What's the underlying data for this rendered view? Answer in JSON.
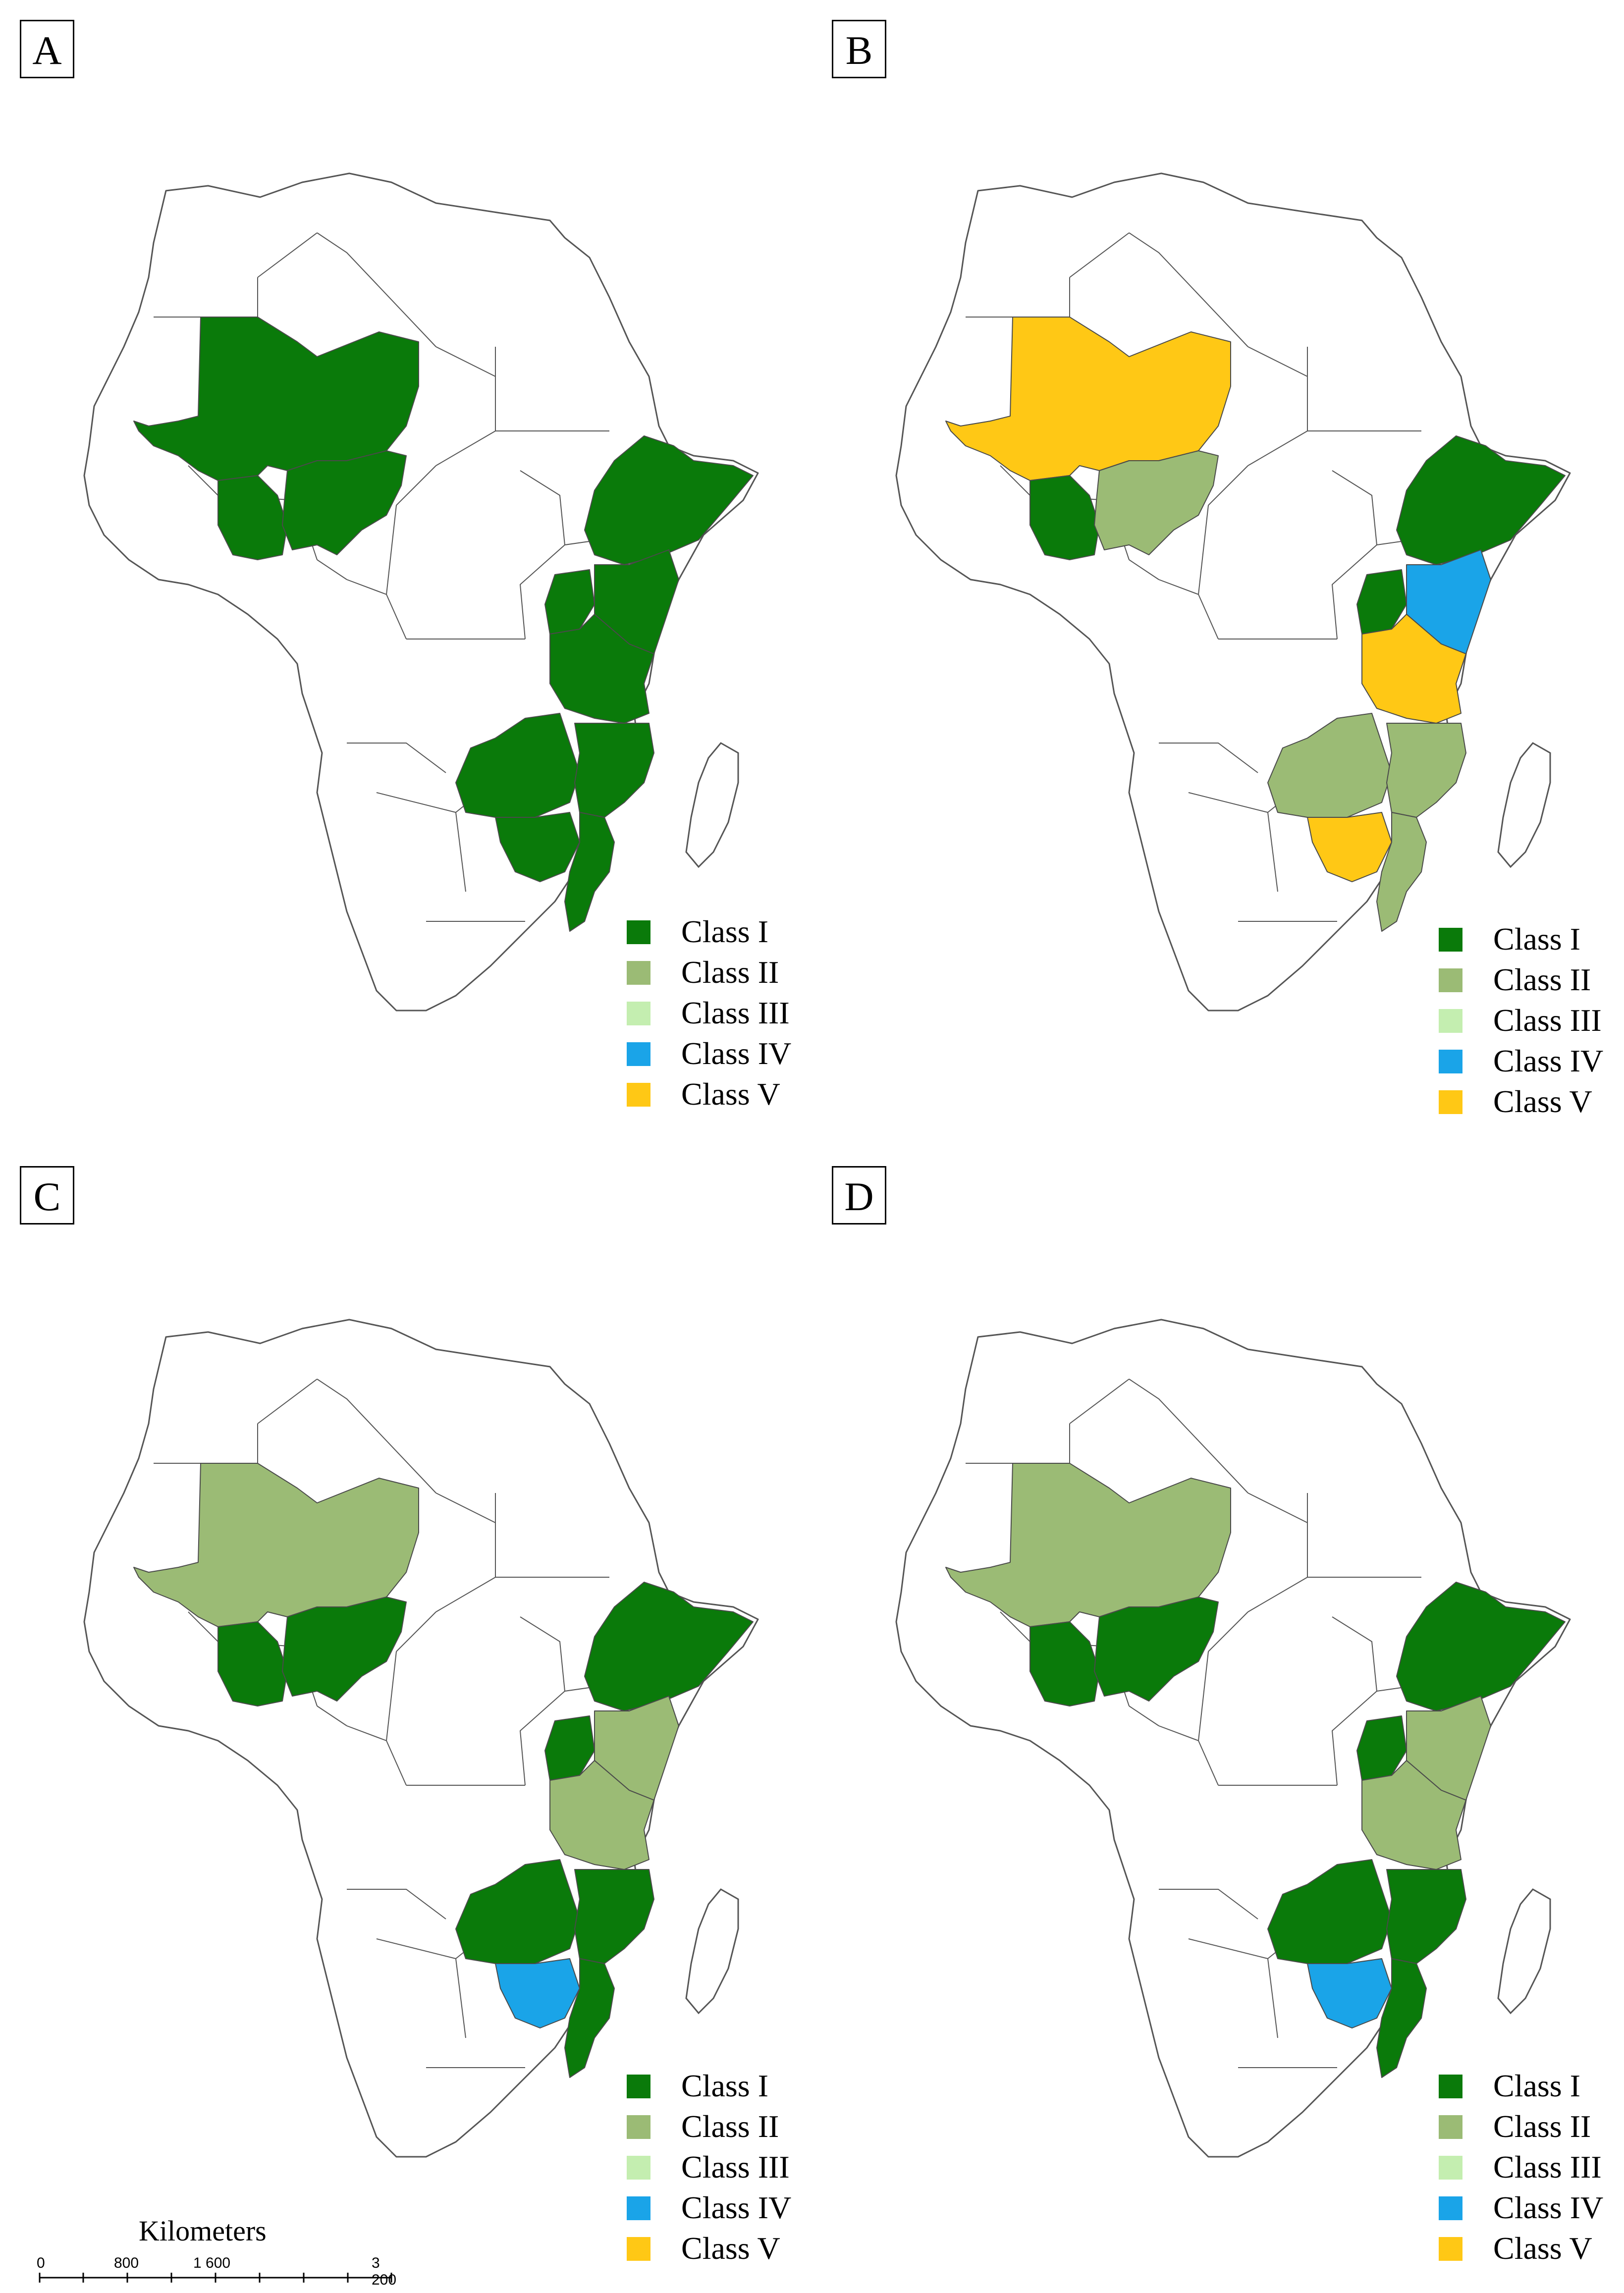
{
  "colors": {
    "class_I": "#0a7a0a",
    "class_II": "#9bbb75",
    "class_III": "#c4eeb0",
    "class_IV": "#1aa4e8",
    "class_V": "#ffc815",
    "unclassified": "#ffffff",
    "border": "#555555"
  },
  "legend": [
    "Class I",
    "Class II",
    "Class III",
    "Class IV",
    "Class V"
  ],
  "panels": [
    {
      "label": "A",
      "regions": {
        "west_sahel": "class_I",
        "west_coast": "class_I",
        "nigeria": "class_I",
        "ethiopia": "class_I",
        "uganda": "class_I",
        "kenya": "class_I",
        "tanzania": "class_I",
        "zambia": "class_I",
        "malawi_moz_n": "class_I",
        "zimbabwe": "class_I",
        "mozambique_s": "class_I"
      }
    },
    {
      "label": "B",
      "regions": {
        "west_sahel": "class_V",
        "west_coast": "class_I",
        "nigeria": "class_II",
        "ethiopia": "class_I",
        "uganda": "class_I",
        "kenya": "class_IV",
        "tanzania": "class_V",
        "zambia": "class_II",
        "malawi_moz_n": "class_II",
        "zimbabwe": "class_V",
        "mozambique_s": "class_II"
      }
    },
    {
      "label": "C",
      "regions": {
        "west_sahel": "class_II",
        "west_coast": "class_I",
        "nigeria": "class_I",
        "ethiopia": "class_I",
        "uganda": "class_I",
        "kenya": "class_II",
        "tanzania": "class_II",
        "zambia": "class_I",
        "malawi_moz_n": "class_I",
        "zimbabwe": "class_IV",
        "mozambique_s": "class_I"
      }
    },
    {
      "label": "D",
      "regions": {
        "west_sahel": "class_II",
        "west_coast": "class_I",
        "nigeria": "class_I",
        "ethiopia": "class_I",
        "uganda": "class_I",
        "kenya": "class_II",
        "tanzania": "class_II",
        "zambia": "class_I",
        "malawi_moz_n": "class_I",
        "zimbabwe": "class_IV",
        "mozambique_s": "class_I"
      }
    }
  ],
  "scale_bar": {
    "title": "Kilometers",
    "ticks": [
      "0",
      "800",
      "1 600",
      "3 200"
    ]
  }
}
